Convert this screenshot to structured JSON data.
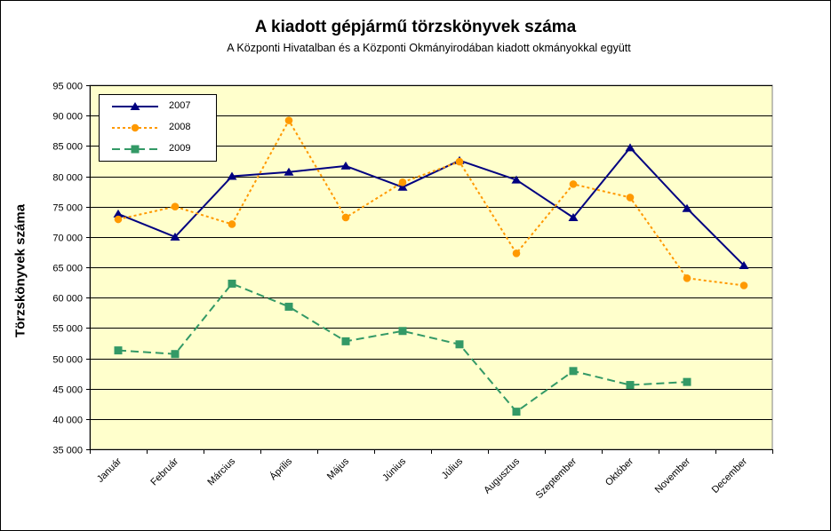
{
  "chart_data": {
    "type": "line",
    "title": "A  kiadott gépjármű  törzskönyvek száma",
    "subtitle": "A Központi Hivatalban és a Központi Okmányirodában kiadott okmányokkal együtt",
    "xlabel": "",
    "ylabel": "Törzskönyvek száma",
    "ylim": [
      35000,
      95000
    ],
    "yticks": [
      35000,
      40000,
      45000,
      50000,
      55000,
      60000,
      65000,
      70000,
      75000,
      80000,
      85000,
      90000,
      95000
    ],
    "ytick_labels": [
      "35 000",
      "40 000",
      "45 000",
      "50 000",
      "55 000",
      "60 000",
      "65 000",
      "70 000",
      "75 000",
      "80 000",
      "85 000",
      "90 000",
      "95 000"
    ],
    "categories": [
      "Január",
      "Február",
      "Március",
      "Április",
      "Május",
      "Június",
      "Július",
      "Augusztus",
      "Szeptember",
      "Október",
      "November",
      "December"
    ],
    "grid": true,
    "plot_background": "#ffffcc",
    "legend_position": "top-left",
    "series": [
      {
        "name": "2007",
        "color": "#000080",
        "marker": "triangle",
        "line_style": "solid",
        "values": [
          73800,
          70000,
          80000,
          80700,
          81700,
          78200,
          82600,
          79400,
          73200,
          84700,
          74700,
          65300
        ]
      },
      {
        "name": "2008",
        "color": "#ff9900",
        "marker": "circle",
        "line_style": "dotted",
        "values": [
          72900,
          75000,
          72100,
          89200,
          73200,
          79000,
          82400,
          67300,
          78700,
          76500,
          63200,
          62000
        ]
      },
      {
        "name": "2009",
        "color": "#339966",
        "marker": "square",
        "line_style": "dashed",
        "values": [
          51300,
          50700,
          62300,
          58500,
          52800,
          54500,
          52300,
          41200,
          47900,
          45600,
          46100,
          null
        ]
      }
    ]
  }
}
